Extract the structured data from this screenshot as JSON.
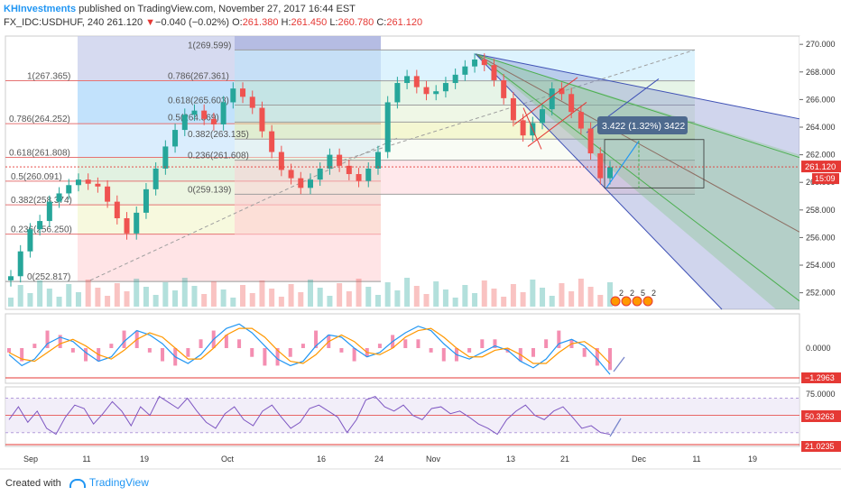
{
  "header": {
    "author": "KHInvestments",
    "published_text": "published on TradingView.com, November 27, 2017 16:44 EST",
    "symbol": "FX_IDC:USDHUF, 240",
    "last": "261.120",
    "change_arrow": "▼",
    "change": "−0.040 (−0.02%)",
    "ohlc": {
      "o_label": "O:",
      "o": "261.380",
      "h_label": "H:",
      "h": "261.450",
      "l_label": "L:",
      "l": "260.780",
      "c_label": "C:",
      "c": "261.120"
    }
  },
  "footer": {
    "created_with": "Created with",
    "brand": "TradingView"
  },
  "colors": {
    "up": "#26a69a",
    "down": "#ef5350",
    "macd": "#2196f3",
    "signal": "#ff9800",
    "rsi": "#7e57c2",
    "fib_red": "#e53935",
    "fan_blue": "#3f51b5",
    "fan_green": "#4caf50"
  },
  "chart_data": {
    "type": "candlestick",
    "symbol": "FX_IDC:USDHUF",
    "interval": "240",
    "price_range": [
      250.8,
      270.6
    ],
    "y_ticks": [
      "252.000",
      "254.000",
      "256.000",
      "258.000",
      "260.000",
      "262.000",
      "264.000",
      "266.000",
      "268.000",
      "270.000"
    ],
    "x_labels": [
      "Sep",
      "11",
      "19",
      "Oct",
      "16",
      "24",
      "Nov",
      "13",
      "21",
      "Dec",
      "11",
      "19"
    ],
    "last_price_label": "261.120",
    "countdown_label": "15:09",
    "close_series": [
      253.2,
      255.0,
      256.6,
      257.2,
      258.6,
      259.2,
      259.8,
      260.2,
      259.9,
      259.7,
      258.6,
      257.4,
      256.3,
      257.8,
      259.5,
      261.0,
      262.6,
      263.8,
      264.9,
      265.2,
      264.6,
      264.2,
      265.8,
      266.8,
      266.2,
      265.4,
      263.7,
      262.2,
      260.9,
      260.3,
      259.6,
      260.2,
      261.0,
      262.0,
      261.2,
      260.6,
      260.1,
      261.0,
      262.2,
      265.8,
      267.2,
      267.7,
      266.9,
      266.4,
      266.6,
      267.2,
      267.8,
      268.4,
      268.9,
      268.5,
      267.4,
      266.1,
      264.5,
      263.4,
      264.3,
      265.3,
      266.8,
      266.4,
      265.1,
      263.9,
      262.1,
      260.3,
      261.1
    ],
    "fib_left": {
      "levels": [
        {
          "label": "1(267.365)",
          "price": 267.365
        },
        {
          "label": "0.786(264.252)",
          "price": 264.252
        },
        {
          "label": "0.618(261.808)",
          "price": 261.808
        },
        {
          "label": "0.5(260.091)",
          "price": 260.091
        },
        {
          "label": "0.382(258.374)",
          "price": 258.374
        },
        {
          "label": "0.236(256.250)",
          "price": 256.25
        },
        {
          "label": "0(252.817)",
          "price": 252.817
        }
      ]
    },
    "fib_right": {
      "levels": [
        {
          "label": "1(269.599)",
          "price": 269.599
        },
        {
          "label": "0.786(267.361)",
          "price": 267.361
        },
        {
          "label": "0.618(265.603)",
          "price": 265.603
        },
        {
          "label": "0.5(264.369)",
          "price": 264.369
        },
        {
          "label": "0.382(263.135)",
          "price": 263.135
        },
        {
          "label": "0.236(261.608)",
          "price": 261.608
        },
        {
          "label": "0(259.139)",
          "price": 259.139
        }
      ]
    },
    "measure_label": "3.422 (1.32%) 3422",
    "event_badges": [
      "2",
      "2",
      "5",
      "2"
    ],
    "macd": {
      "current_label": "0.0000",
      "low_label": "−1.2963",
      "macd_series": [
        -0.3,
        -0.8,
        -0.5,
        0.2,
        0.5,
        0.3,
        -0.2,
        -0.6,
        -0.4,
        0.3,
        0.8,
        0.6,
        0.2,
        -0.4,
        -0.7,
        -0.3,
        0.4,
        0.9,
        1.1,
        0.7,
        0.1,
        -0.5,
        -0.8,
        -0.6,
        0.1,
        0.6,
        0.5,
        0.0,
        -0.4,
        -0.2,
        0.3,
        0.7,
        1.0,
        0.8,
        0.2,
        -0.3,
        -0.5,
        -0.2,
        0.1,
        -0.1,
        -0.6,
        -0.9,
        -0.5,
        0.2,
        0.4,
        0.1,
        -0.5,
        -1.2
      ],
      "signal_series": [
        -0.2,
        -0.5,
        -0.6,
        -0.2,
        0.2,
        0.4,
        0.1,
        -0.3,
        -0.5,
        -0.1,
        0.4,
        0.7,
        0.5,
        0.0,
        -0.5,
        -0.5,
        0.0,
        0.6,
        0.9,
        0.9,
        0.5,
        -0.1,
        -0.6,
        -0.7,
        -0.3,
        0.3,
        0.6,
        0.3,
        -0.2,
        -0.3,
        0.0,
        0.5,
        0.8,
        0.9,
        0.5,
        0.0,
        -0.4,
        -0.4,
        -0.1,
        0.0,
        -0.3,
        -0.7,
        -0.7,
        -0.2,
        0.2,
        0.3,
        -0.1,
        -0.7
      ]
    },
    "rsi": {
      "top_label": "75.0000",
      "current_label": "50.3263",
      "bottom_label": "21.0235",
      "series": [
        45,
        60,
        42,
        55,
        35,
        28,
        48,
        62,
        58,
        40,
        52,
        66,
        55,
        38,
        60,
        50,
        72,
        65,
        58,
        70,
        55,
        42,
        35,
        52,
        60,
        45,
        38,
        55,
        62,
        48,
        35,
        42,
        58,
        62,
        55,
        48,
        30,
        45,
        68,
        72,
        60,
        55,
        62,
        50,
        45,
        58,
        60,
        52,
        55,
        48,
        40,
        35,
        28,
        45,
        55,
        62,
        50,
        45,
        55,
        60,
        48,
        35,
        38,
        30,
        28
      ]
    }
  }
}
